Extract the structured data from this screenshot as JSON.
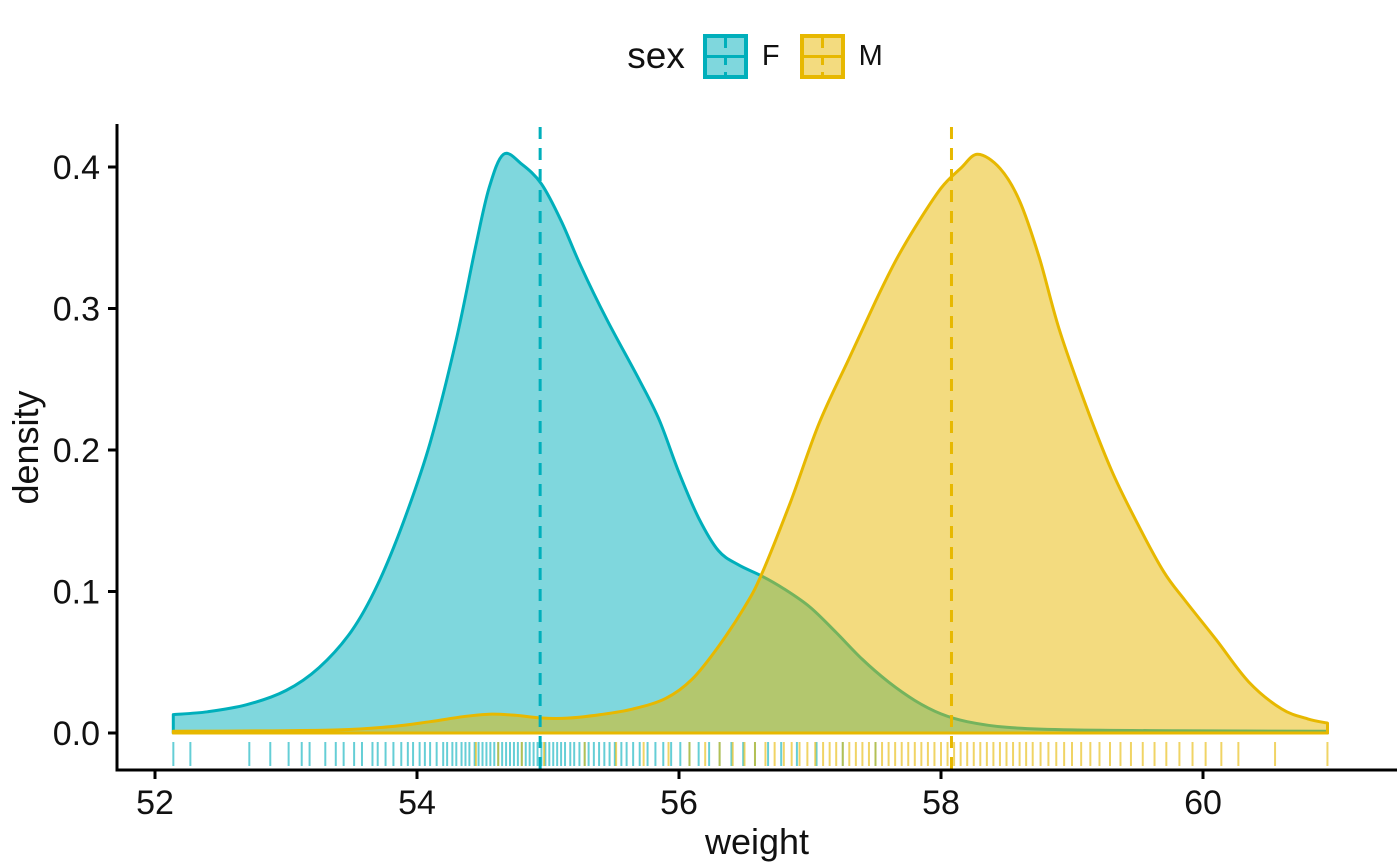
{
  "legend": {
    "title": "sex",
    "items": [
      {
        "label": "F",
        "color": "#00AFBB",
        "key_fill": "#7fd7dd"
      },
      {
        "label": "M",
        "color": "#E7B800",
        "key_fill": "#f3db7f"
      }
    ]
  },
  "axes": {
    "x": {
      "label": "weight"
    },
    "y": {
      "label": "density"
    }
  },
  "chart_data": {
    "type": "area",
    "subtype": "density",
    "title": "",
    "xlabel": "weight",
    "ylabel": "density",
    "xlim": [
      51.7,
      61.4
    ],
    "ylim": [
      0,
      0.425
    ],
    "x_ticks": [
      "52",
      "54",
      "56",
      "58",
      "60"
    ],
    "x_tick_values": [
      52,
      54,
      56,
      58,
      60
    ],
    "y_ticks": [
      "0.0",
      "0.1",
      "0.2",
      "0.3",
      "0.4"
    ],
    "y_tick_values": [
      0,
      0.1,
      0.2,
      0.3,
      0.4
    ],
    "grid": false,
    "legend_position": "top",
    "series": [
      {
        "name": "F",
        "color": "#00AFBB",
        "fill": "rgba(0,175,187,0.5)",
        "mean": 54.94,
        "points": [
          [
            52.14,
            0.013
          ],
          [
            52.4,
            0.015
          ],
          [
            52.7,
            0.02
          ],
          [
            53.0,
            0.03
          ],
          [
            53.25,
            0.046
          ],
          [
            53.5,
            0.072
          ],
          [
            53.7,
            0.105
          ],
          [
            53.9,
            0.15
          ],
          [
            54.1,
            0.205
          ],
          [
            54.3,
            0.278
          ],
          [
            54.45,
            0.345
          ],
          [
            54.55,
            0.385
          ],
          [
            54.66,
            0.409
          ],
          [
            54.8,
            0.402
          ],
          [
            54.95,
            0.388
          ],
          [
            55.1,
            0.362
          ],
          [
            55.25,
            0.33
          ],
          [
            55.45,
            0.292
          ],
          [
            55.7,
            0.249
          ],
          [
            55.85,
            0.221
          ],
          [
            56.0,
            0.184
          ],
          [
            56.15,
            0.152
          ],
          [
            56.3,
            0.129
          ],
          [
            56.45,
            0.119
          ],
          [
            56.63,
            0.111
          ],
          [
            56.8,
            0.102
          ],
          [
            57.0,
            0.089
          ],
          [
            57.2,
            0.071
          ],
          [
            57.4,
            0.052
          ],
          [
            57.6,
            0.036
          ],
          [
            57.8,
            0.023
          ],
          [
            58.0,
            0.0135
          ],
          [
            58.2,
            0.008
          ],
          [
            58.5,
            0.004
          ],
          [
            59.0,
            0.0022
          ],
          [
            59.8,
            0.0016
          ],
          [
            60.95,
            0.0012
          ]
        ],
        "rug": [
          52.14,
          52.27,
          52.72,
          52.88,
          53.02,
          53.12,
          53.18,
          53.3,
          53.38,
          53.44,
          53.52,
          53.58,
          53.66,
          53.7,
          53.76,
          53.82,
          53.88,
          53.93,
          53.97,
          54.02,
          54.06,
          54.1,
          54.15,
          54.2,
          54.23,
          54.27,
          54.3,
          54.34,
          54.37,
          54.4,
          54.44,
          54.47,
          54.5,
          54.53,
          54.56,
          54.59,
          54.62,
          54.65,
          54.68,
          54.71,
          54.74,
          54.77,
          54.8,
          54.83,
          54.86,
          54.89,
          54.92,
          54.95,
          54.98,
          55.01,
          55.04,
          55.07,
          55.1,
          55.13,
          55.17,
          55.2,
          55.24,
          55.28,
          55.31,
          55.35,
          55.39,
          55.43,
          55.47,
          55.51,
          55.56,
          55.6,
          55.65,
          55.7,
          55.76,
          55.82,
          55.88,
          55.94,
          56.01,
          56.08,
          56.15,
          56.23,
          56.31,
          56.4,
          56.49,
          56.58,
          56.68,
          56.78,
          56.9,
          57.05,
          57.25,
          57.5
        ]
      },
      {
        "name": "M",
        "color": "#E7B800",
        "fill": "rgba(231,184,0,0.5)",
        "mean": 58.08,
        "points": [
          [
            52.14,
            0.0012
          ],
          [
            52.8,
            0.0015
          ],
          [
            53.4,
            0.0022
          ],
          [
            53.8,
            0.0045
          ],
          [
            54.1,
            0.008
          ],
          [
            54.35,
            0.0115
          ],
          [
            54.55,
            0.0133
          ],
          [
            54.75,
            0.0125
          ],
          [
            54.95,
            0.0106
          ],
          [
            55.15,
            0.0105
          ],
          [
            55.4,
            0.013
          ],
          [
            55.65,
            0.017
          ],
          [
            55.9,
            0.0245
          ],
          [
            56.1,
            0.038
          ],
          [
            56.3,
            0.061
          ],
          [
            56.5,
            0.089
          ],
          [
            56.63,
            0.112
          ],
          [
            56.85,
            0.163
          ],
          [
            57.07,
            0.219
          ],
          [
            57.3,
            0.265
          ],
          [
            57.5,
            0.305
          ],
          [
            57.65,
            0.333
          ],
          [
            57.8,
            0.357
          ],
          [
            58.0,
            0.385
          ],
          [
            58.15,
            0.399
          ],
          [
            58.28,
            0.409
          ],
          [
            58.45,
            0.399
          ],
          [
            58.6,
            0.376
          ],
          [
            58.75,
            0.336
          ],
          [
            58.9,
            0.286
          ],
          [
            59.1,
            0.233
          ],
          [
            59.3,
            0.186
          ],
          [
            59.5,
            0.148
          ],
          [
            59.7,
            0.114
          ],
          [
            59.86,
            0.094
          ],
          [
            60.1,
            0.066
          ],
          [
            60.35,
            0.036
          ],
          [
            60.6,
            0.017
          ],
          [
            60.8,
            0.01
          ],
          [
            60.95,
            0.007
          ]
        ],
        "rug": [
          54.45,
          54.62,
          54.8,
          54.97,
          55.28,
          55.52,
          55.73,
          55.92,
          56.08,
          56.2,
          56.31,
          56.41,
          56.5,
          56.58,
          56.66,
          56.73,
          56.8,
          56.86,
          56.92,
          56.98,
          57.04,
          57.1,
          57.15,
          57.2,
          57.25,
          57.3,
          57.35,
          57.4,
          57.45,
          57.5,
          57.55,
          57.6,
          57.65,
          57.7,
          57.75,
          57.8,
          57.85,
          57.9,
          57.95,
          58.0,
          58.05,
          58.1,
          58.15,
          58.2,
          58.25,
          58.3,
          58.35,
          58.4,
          58.45,
          58.5,
          58.55,
          58.6,
          58.65,
          58.7,
          58.76,
          58.82,
          58.88,
          58.94,
          59.0,
          59.07,
          59.14,
          59.21,
          59.29,
          59.37,
          59.45,
          59.54,
          59.63,
          59.72,
          59.82,
          59.92,
          60.02,
          60.14,
          60.27,
          60.55,
          60.95
        ]
      }
    ]
  }
}
